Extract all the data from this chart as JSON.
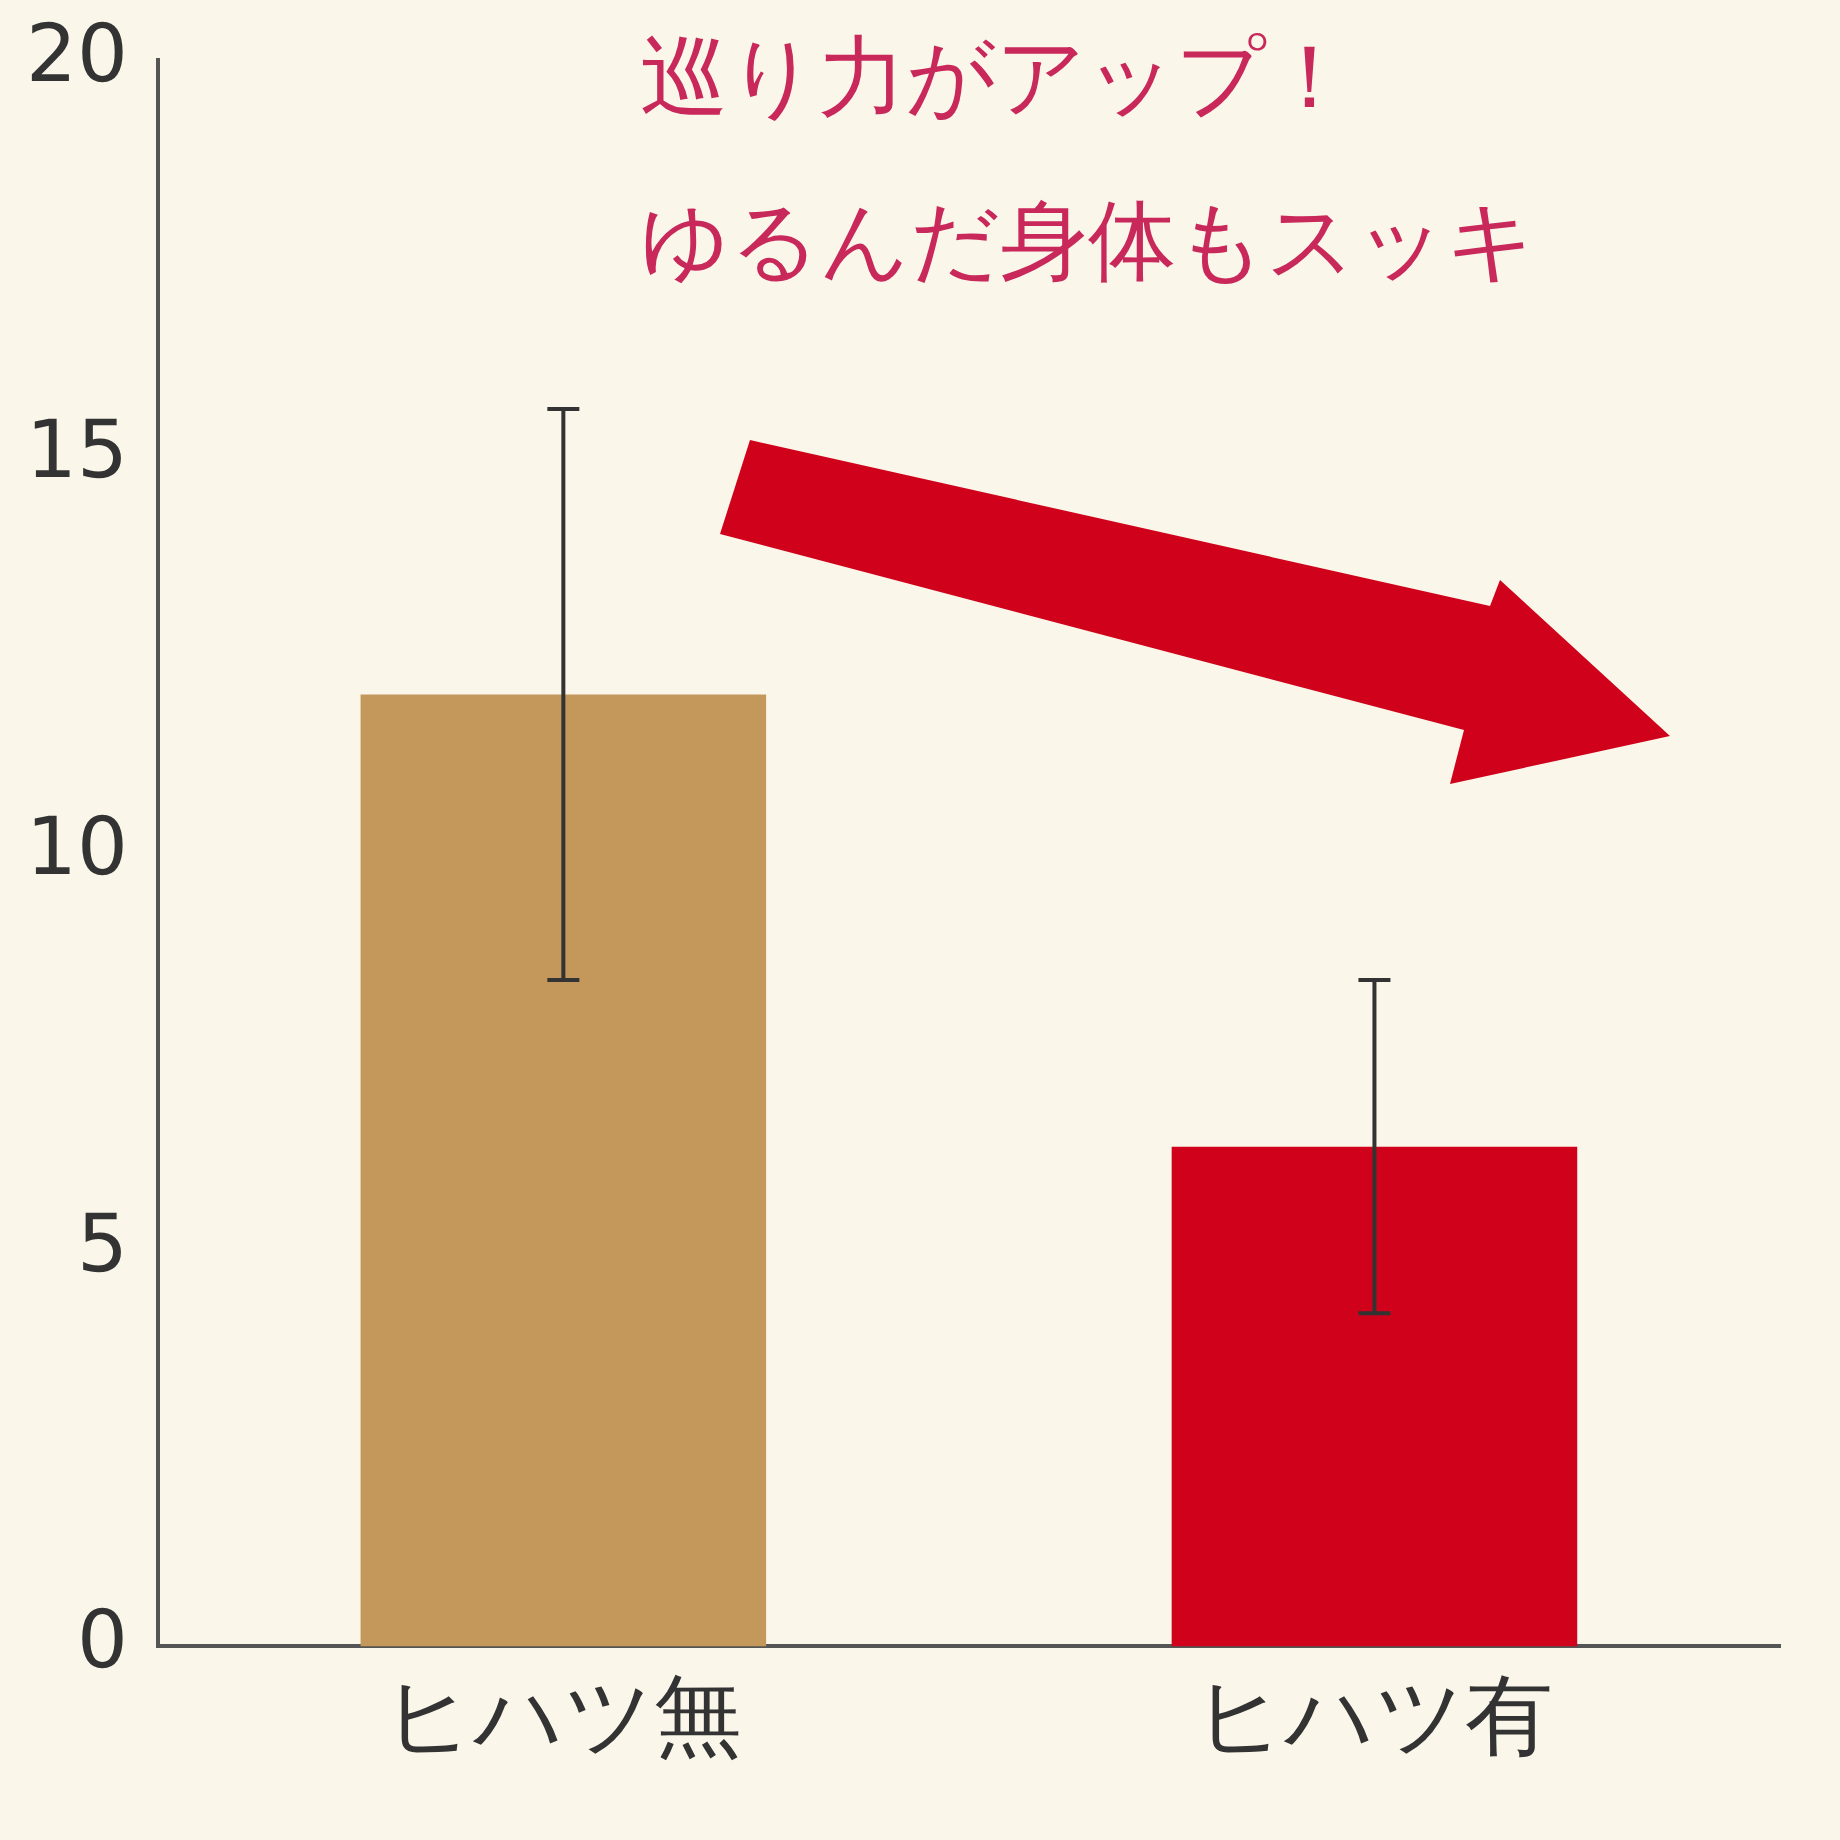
{
  "chart_data": {
    "type": "bar",
    "categories": [
      "ヒハツ無",
      "ヒハツ有"
    ],
    "values": [
      12.0,
      6.3
    ],
    "errors": [
      3.6,
      2.1
    ],
    "colors": [
      "#c4975a",
      "#d0021b"
    ],
    "ylim": [
      0,
      20
    ],
    "yticks": [
      0,
      5,
      10,
      15,
      20
    ],
    "grid": false,
    "legend": false,
    "annotations": [
      "巡り力がアップ！",
      "ゆるんだ身体もスッキ"
    ]
  }
}
